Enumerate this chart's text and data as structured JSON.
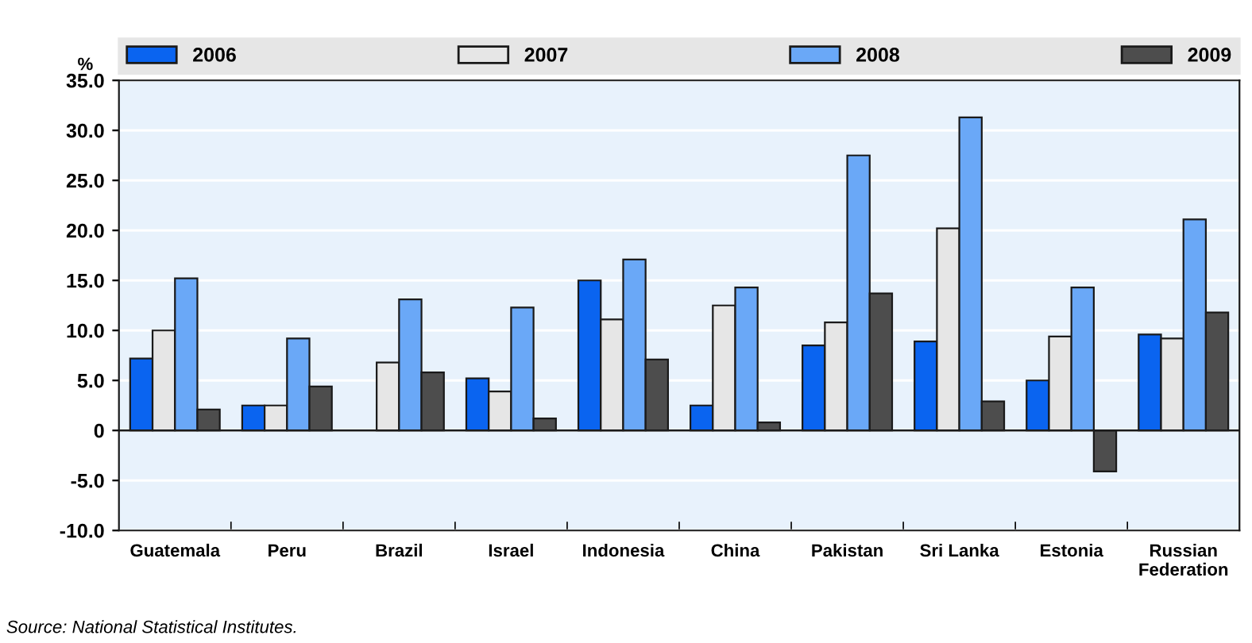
{
  "chart_data": {
    "type": "bar",
    "categories": [
      "Guatemala",
      "Peru",
      "Brazil",
      "Israel",
      "Indonesia",
      "China",
      "Pakistan",
      "Sri Lanka",
      "Estonia",
      "Russian Federation"
    ],
    "series": [
      {
        "name": "2006",
        "color": "#0a64f0",
        "values": [
          7.2,
          2.5,
          null,
          5.2,
          15.0,
          2.5,
          8.5,
          8.9,
          5.0,
          9.6
        ]
      },
      {
        "name": "2007",
        "color": "#e6e6e6",
        "values": [
          10.0,
          2.5,
          6.8,
          3.9,
          11.1,
          12.5,
          10.8,
          20.2,
          9.4,
          9.2
        ]
      },
      {
        "name": "2008",
        "color": "#6aa8f7",
        "values": [
          15.2,
          9.2,
          13.1,
          12.3,
          17.1,
          14.3,
          27.5,
          31.3,
          14.3,
          21.1
        ]
      },
      {
        "name": "2009",
        "color": "#4d4d4d",
        "values": [
          2.1,
          4.4,
          5.8,
          1.2,
          7.1,
          0.8,
          13.7,
          2.9,
          -4.1,
          11.8
        ]
      }
    ],
    "ylabel": "%",
    "ylim": [
      -10,
      35
    ],
    "yticks": [
      {
        "value": -10,
        "label": "-10.0"
      },
      {
        "value": -5,
        "label": "-5.0"
      },
      0,
      {
        "value": 5,
        "label": "5.0"
      },
      {
        "value": 10,
        "label": "10.0"
      },
      {
        "value": 15,
        "label": "15.0"
      },
      {
        "value": 20,
        "label": "20.0"
      },
      {
        "value": 25,
        "label": "25.0"
      },
      {
        "value": 30,
        "label": "30.0"
      },
      {
        "value": 35,
        "label": "35.0"
      }
    ],
    "grid": "y",
    "legend": "top",
    "annotations": [
      "Source: National Statistical Institutes."
    ]
  }
}
